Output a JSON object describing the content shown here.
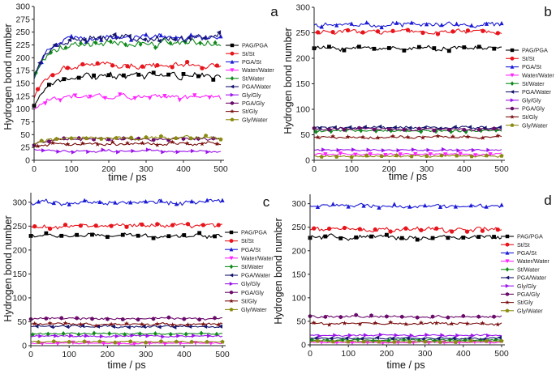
{
  "figure": {
    "panels": [
      "a",
      "b",
      "c",
      "d"
    ],
    "xlabel": "time / ps",
    "ylabel": "Hydrogen bond number"
  },
  "chart_data": [
    {
      "panel": "a",
      "type": "line",
      "xlabel": "time / ps",
      "ylabel": "Hydrogen bond number",
      "xlim": [
        0,
        500
      ],
      "ylim": [
        0,
        300
      ],
      "xticks": [
        0,
        100,
        200,
        300,
        400,
        500
      ],
      "yticks": [
        0,
        25,
        50,
        75,
        100,
        125,
        150,
        175,
        200,
        225,
        250,
        275,
        300
      ],
      "series": [
        {
          "name": "PAG/PGA",
          "color": "#000000",
          "marker": "square",
          "start": 105,
          "mean": 165,
          "noise": 7
        },
        {
          "name": "St/St",
          "color": "#e8141c",
          "marker": "circle",
          "start": 120,
          "mean": 185,
          "noise": 7
        },
        {
          "name": "PGA/St",
          "color": "#1a1ad6",
          "marker": "triangle-up",
          "start": 160,
          "mean": 240,
          "noise": 8
        },
        {
          "name": "Water/Water",
          "color": "#ff22ff",
          "marker": "triangle-down",
          "start": 100,
          "mean": 125,
          "noise": 6
        },
        {
          "name": "St/Water",
          "color": "#10891b",
          "marker": "diamond",
          "start": 160,
          "mean": 228,
          "noise": 8
        },
        {
          "name": "PGA/Water",
          "color": "#16166e",
          "marker": "triangle-left",
          "start": 165,
          "mean": 238,
          "noise": 9
        },
        {
          "name": "Gly/Gly",
          "color": "#9a12ea",
          "marker": "triangle-right",
          "start": 22,
          "mean": 18,
          "noise": 3
        },
        {
          "name": "PGA/Gly",
          "color": "#6a0a6a",
          "marker": "hexagon",
          "start": 30,
          "mean": 42,
          "noise": 4
        },
        {
          "name": "St/Gly",
          "color": "#7a1010",
          "marker": "star",
          "start": 26,
          "mean": 32,
          "noise": 4
        },
        {
          "name": "Gly/Water",
          "color": "#8a8a10",
          "marker": "pentagon",
          "start": 30,
          "mean": 44,
          "noise": 4
        }
      ]
    },
    {
      "panel": "b",
      "type": "line",
      "xlabel": "time / ps",
      "ylabel": "Hydrogen bond number",
      "xlim": [
        0,
        500
      ],
      "ylim": [
        0,
        300
      ],
      "xticks": [
        0,
        100,
        200,
        300,
        400,
        500
      ],
      "yticks": [
        0,
        50,
        100,
        150,
        200,
        250,
        300
      ],
      "series": [
        {
          "name": "PAG/PGA",
          "color": "#000000",
          "marker": "square",
          "mean": 220,
          "noise": 5
        },
        {
          "name": "St/St",
          "color": "#e8141c",
          "marker": "circle",
          "mean": 252,
          "noise": 5
        },
        {
          "name": "PGA/St",
          "color": "#1a1ad6",
          "marker": "triangle-up",
          "mean": 266,
          "noise": 6
        },
        {
          "name": "Water/Water",
          "color": "#ff22ff",
          "marker": "triangle-down",
          "mean": 12,
          "noise": 2
        },
        {
          "name": "St/Water",
          "color": "#10891b",
          "marker": "diamond",
          "mean": 58,
          "noise": 3
        },
        {
          "name": "PGA/Water",
          "color": "#16166e",
          "marker": "triangle-left",
          "mean": 64,
          "noise": 3
        },
        {
          "name": "Gly/Gly",
          "color": "#9a12ea",
          "marker": "triangle-right",
          "mean": 20,
          "noise": 2
        },
        {
          "name": "PGA/Gly",
          "color": "#6a0a6a",
          "marker": "hexagon",
          "mean": 61,
          "noise": 3
        },
        {
          "name": "St/Gly",
          "color": "#7a1010",
          "marker": "star",
          "mean": 45,
          "noise": 3
        },
        {
          "name": "Gly/Water",
          "color": "#8a8a10",
          "marker": "pentagon",
          "mean": 8,
          "noise": 2
        }
      ]
    },
    {
      "panel": "c",
      "type": "line",
      "xlabel": "time / ps",
      "ylabel": "Hydrogen bond number",
      "xlim": [
        0,
        500
      ],
      "ylim": [
        0,
        320
      ],
      "xticks": [
        0,
        100,
        200,
        300,
        400,
        500
      ],
      "yticks": [
        0,
        50,
        100,
        150,
        200,
        250,
        300
      ],
      "series": [
        {
          "name": "PAG/PGA",
          "color": "#000000",
          "marker": "square",
          "mean": 230,
          "noise": 5
        },
        {
          "name": "St/St",
          "color": "#e8141c",
          "marker": "circle",
          "mean": 250,
          "noise": 6
        },
        {
          "name": "PGA/St",
          "color": "#1a1ad6",
          "marker": "triangle-up",
          "mean": 300,
          "noise": 6
        },
        {
          "name": "Water/Water",
          "color": "#ff22ff",
          "marker": "triangle-down",
          "mean": 5,
          "noise": 1.5
        },
        {
          "name": "St/Water",
          "color": "#10891b",
          "marker": "diamond",
          "mean": 25,
          "noise": 2
        },
        {
          "name": "PGA/Water",
          "color": "#16166e",
          "marker": "triangle-left",
          "mean": 40,
          "noise": 3
        },
        {
          "name": "Gly/Gly",
          "color": "#9a12ea",
          "marker": "triangle-right",
          "mean": 20,
          "noise": 2
        },
        {
          "name": "PGA/Gly",
          "color": "#6a0a6a",
          "marker": "hexagon",
          "mean": 57,
          "noise": 3
        },
        {
          "name": "St/Gly",
          "color": "#7a1010",
          "marker": "star",
          "mean": 45,
          "noise": 3
        },
        {
          "name": "Gly/Water",
          "color": "#8a8a10",
          "marker": "pentagon",
          "mean": 8,
          "noise": 1.5
        }
      ]
    },
    {
      "panel": "d",
      "type": "line",
      "xlabel": "time / ps",
      "ylabel": "Hydrogen bond number",
      "xlim": [
        0,
        500
      ],
      "ylim": [
        0,
        320
      ],
      "xticks": [
        0,
        100,
        200,
        300,
        400,
        500
      ],
      "yticks": [
        0,
        50,
        100,
        150,
        200,
        250,
        300
      ],
      "series": [
        {
          "name": "PAG/PGA",
          "color": "#000000",
          "marker": "square",
          "mean": 228,
          "noise": 6
        },
        {
          "name": "St/St",
          "color": "#e8141c",
          "marker": "circle",
          "mean": 245,
          "noise": 6
        },
        {
          "name": "PGA/St",
          "color": "#1a1ad6",
          "marker": "triangle-up",
          "mean": 295,
          "noise": 6
        },
        {
          "name": "Water/Water",
          "color": "#ff22ff",
          "marker": "triangle-down",
          "mean": 5,
          "noise": 1.5
        },
        {
          "name": "St/Water",
          "color": "#10891b",
          "marker": "diamond",
          "mean": 10,
          "noise": 2
        },
        {
          "name": "PGA/Water",
          "color": "#16166e",
          "marker": "triangle-left",
          "mean": 14,
          "noise": 2
        },
        {
          "name": "Gly/Gly",
          "color": "#9a12ea",
          "marker": "triangle-right",
          "mean": 20,
          "noise": 2
        },
        {
          "name": "PGA/Gly",
          "color": "#6a0a6a",
          "marker": "hexagon",
          "mean": 60,
          "noise": 3
        },
        {
          "name": "St/Gly",
          "color": "#7a1010",
          "marker": "star",
          "mean": 45,
          "noise": 3
        },
        {
          "name": "Gly/Water",
          "color": "#8a8a10",
          "marker": "pentagon",
          "mean": 7,
          "noise": 1.5
        }
      ]
    }
  ]
}
